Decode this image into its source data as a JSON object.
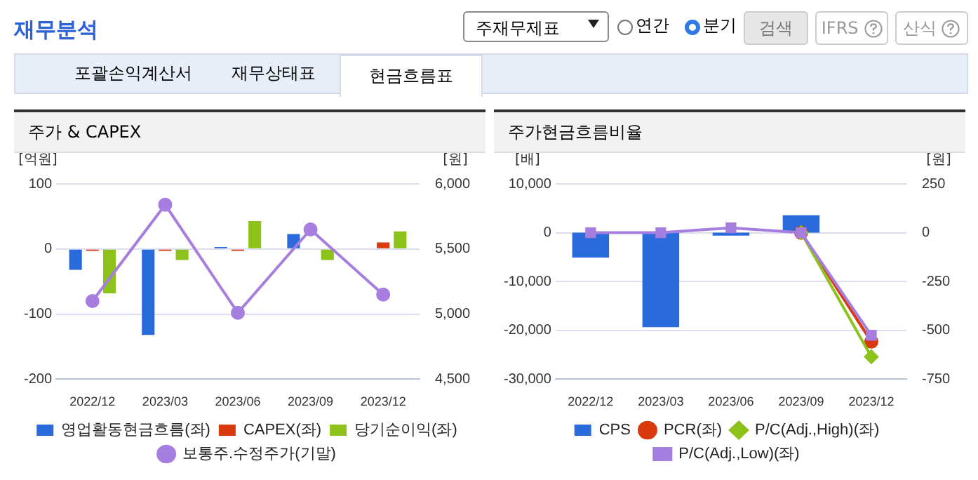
{
  "chart_data": [
    {
      "type": "other",
      "title": "재무분석",
      "annotations": [
        "주재무제표",
        "연간",
        "분기",
        "검색",
        "IFRS",
        "산식",
        "포괄손익계산서",
        "재무상태표",
        "현금흐름표"
      ]
    },
    {
      "type": "bar",
      "title": "주가 & CAPEX",
      "ylabel": "[억원]",
      "y2label": "[원]",
      "categories": [
        "2022/12",
        "2023/03",
        "2023/06",
        "2023/09",
        "2023/12"
      ],
      "series": [
        {
          "name": "영업활동현금흐름(좌)",
          "color": "#2a6bdc",
          "values": [
            -32,
            -132,
            3,
            23,
            null
          ]
        },
        {
          "name": "CAPEX(좌)",
          "color": "#d83a0e",
          "values": [
            -3,
            -3,
            -3,
            0,
            10
          ]
        },
        {
          "name": "당기순이익(좌)",
          "color": "#8cc21a",
          "values": [
            -68,
            -17,
            43,
            -17,
            27
          ]
        },
        {
          "name": "보통주.수정주가(기말)",
          "type": "line",
          "axis": "y2",
          "marker": "circle",
          "color": "#a57ee0",
          "values": [
            5100,
            5840,
            5010,
            5650,
            5150
          ]
        }
      ],
      "ylim": [
        -200,
        100
      ],
      "yticks": [
        -200,
        -100,
        0,
        100
      ],
      "y2lim": [
        4500,
        6000
      ],
      "y2ticks": [
        {
          "value": 4500,
          "label": "4,500"
        },
        {
          "value": 5000,
          "label": "5,000"
        },
        {
          "value": 5500,
          "label": "5,500"
        },
        {
          "value": 6000,
          "label": "6,000"
        }
      ],
      "grid": "y",
      "legend": "bottom"
    },
    {
      "type": "bar",
      "title": "주가현금흐름비율",
      "ylabel": "[배]",
      "y2label": "[원]",
      "categories": [
        "2022/12",
        "2023/03",
        "2023/06",
        "2023/09",
        "2023/12"
      ],
      "series": [
        {
          "name": "CPS",
          "axis": "y2",
          "color": "#2a6bdc",
          "values": [
            -127,
            -484,
            -15,
            89,
            null
          ]
        },
        {
          "name": "PCR(좌)",
          "type": "line",
          "marker": "circle",
          "color": "#d83a0e",
          "values": [
            null,
            null,
            null,
            0,
            -22300
          ]
        },
        {
          "name": "P/C(Adj.,High)(좌)",
          "type": "line",
          "marker": "diamond",
          "color": "#8cc21a",
          "values": [
            null,
            null,
            null,
            0,
            -25400
          ]
        },
        {
          "name": "P/C(Adj.,Low)(좌)",
          "type": "line",
          "marker": "square",
          "color": "#a57ee0",
          "values": [
            0,
            0,
            1000,
            0,
            -21000
          ]
        }
      ],
      "ylim": [
        -30000,
        10000
      ],
      "yticks": [
        {
          "value": -30000,
          "label": "-30,000"
        },
        {
          "value": -20000,
          "label": "-20,000"
        },
        {
          "value": -10000,
          "label": "-10,000"
        },
        0,
        {
          "value": 10000,
          "label": "10,000"
        }
      ],
      "y2lim": [
        -750,
        250
      ],
      "y2ticks": [
        -750,
        -500,
        -250,
        0,
        250
      ],
      "grid": "y",
      "legend": "bottom"
    }
  ]
}
